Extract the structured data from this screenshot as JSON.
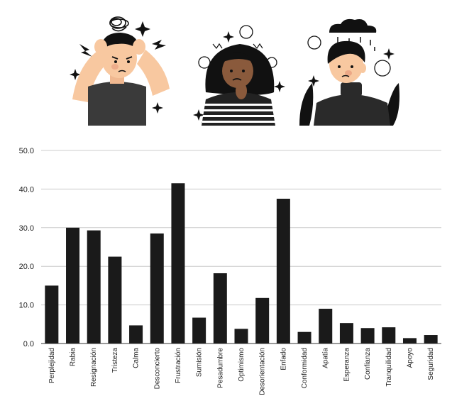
{
  "illustrations": [
    {
      "name": "frustrated-man-illustration"
    },
    {
      "name": "worried-woman-illustration"
    },
    {
      "name": "sad-person-rain-cloud-illustration"
    }
  ],
  "colors": {
    "bar": "#1a1a1a",
    "grid": "#cccccc",
    "axis": "#333333",
    "skin": "#f8c8a0",
    "skin_dark": "#8a5a3c",
    "hair": "#111111",
    "shirt": "#3a3a3a"
  },
  "chart_data": {
    "type": "bar",
    "title": "",
    "xlabel": "",
    "ylabel": "",
    "ylim": [
      0,
      50
    ],
    "yticks": [
      "0.0",
      "10.0",
      "20.0",
      "30.0",
      "40.0",
      "50.0"
    ],
    "grid": true,
    "categories": [
      "Perplejidad",
      "Rabia",
      "Resignación",
      "Tristeza",
      "Calma",
      "Desconcierto",
      "Frustración",
      "Sumisión",
      "Pesadumbre",
      "Optimismo",
      "Desorientación",
      "Enfado",
      "Conformidad",
      "Apatía",
      "Esperanza",
      "Confianza",
      "Tranquilidad",
      "Apoyo",
      "Seguridad"
    ],
    "values": [
      15.0,
      30.0,
      29.3,
      22.5,
      4.7,
      28.5,
      41.5,
      6.7,
      18.2,
      3.8,
      11.8,
      37.5,
      3.0,
      9.0,
      5.3,
      4.0,
      4.2,
      1.4,
      2.2
    ]
  }
}
